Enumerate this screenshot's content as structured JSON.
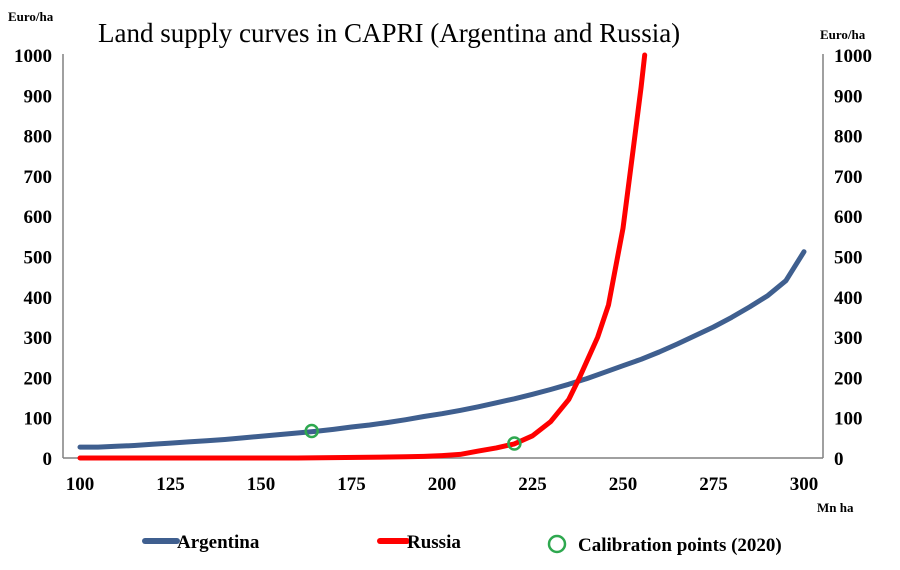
{
  "chart_data": {
    "type": "line",
    "title": "Land supply curves in CAPRI  (Argentina and Russia)",
    "ylabel_left": "Euro/ha",
    "ylabel_right": "Euro/ha",
    "xlabel": "Mn ha",
    "xlim": [
      100,
      300
    ],
    "ylim": [
      0,
      1000
    ],
    "x_ticks": [
      100,
      125,
      150,
      175,
      200,
      225,
      250,
      275,
      300
    ],
    "y_ticks": [
      0,
      100,
      200,
      300,
      400,
      500,
      600,
      700,
      800,
      900,
      1000
    ],
    "grid": false,
    "legend_position": "bottom",
    "series": [
      {
        "name": "Argentina",
        "color": "#3f5f8f",
        "x": [
          100,
          105,
          110,
          115,
          120,
          125,
          130,
          135,
          140,
          145,
          150,
          155,
          160,
          165,
          170,
          175,
          180,
          185,
          190,
          195,
          200,
          205,
          210,
          215,
          220,
          225,
          230,
          235,
          240,
          245,
          250,
          255,
          260,
          265,
          270,
          275,
          280,
          285,
          290,
          295,
          300
        ],
        "y": [
          27,
          27,
          29,
          31,
          34,
          37,
          40,
          43,
          46,
          50,
          54,
          58,
          62,
          66,
          71,
          77,
          82,
          88,
          95,
          103,
          110,
          118,
          127,
          137,
          147,
          158,
          170,
          183,
          197,
          213,
          229,
          245,
          263,
          283,
          304,
          325,
          349,
          375,
          403,
          440,
          512
        ]
      },
      {
        "name": "Russia",
        "color": "#ff0000",
        "x": [
          100,
          120,
          140,
          160,
          170,
          180,
          190,
          195,
          200,
          205,
          210,
          215,
          220,
          225,
          230,
          235,
          238,
          240,
          243,
          246,
          250,
          253,
          255,
          256
        ],
        "y": [
          0,
          0,
          0,
          0,
          1,
          2,
          3,
          4,
          6,
          9,
          17,
          25,
          35,
          55,
          90,
          145,
          200,
          240,
          300,
          380,
          570,
          780,
          920,
          1000
        ]
      }
    ],
    "calibration_points": {
      "name": "Calibration points (2020)",
      "color": "#2ea84f",
      "points": [
        {
          "x": 164,
          "y": 67
        },
        {
          "x": 220,
          "y": 36
        }
      ]
    }
  }
}
